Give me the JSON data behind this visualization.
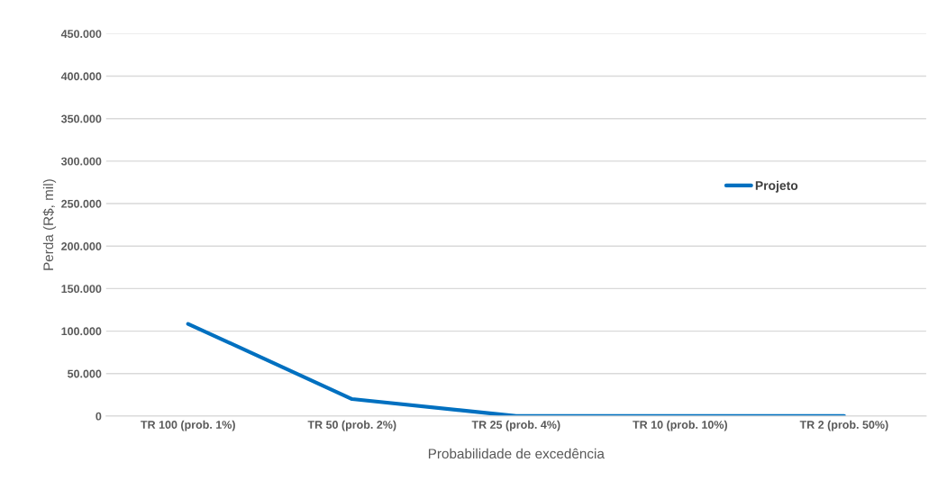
{
  "chart_data": {
    "type": "line",
    "xlabel": "Probabilidade de excedência",
    "ylabel": "Perda (R$, mil)",
    "categories": [
      "TR 100 (prob. 1%)",
      "TR 50 (prob. 2%)",
      "TR 25 (prob. 4%)",
      "TR 10 (prob. 10%)",
      "TR 2 (prob. 50%)"
    ],
    "series": [
      {
        "name": "Projeto",
        "color": "#0070c0",
        "values": [
          108500,
          20000,
          0,
          0,
          0
        ]
      }
    ],
    "ylim": [
      0,
      450000
    ],
    "yticks": [
      {
        "value": 0,
        "label": "0"
      },
      {
        "value": 50000,
        "label": "50.000"
      },
      {
        "value": 100000,
        "label": "100.000"
      },
      {
        "value": 150000,
        "label": "150.000"
      },
      {
        "value": 200000,
        "label": "200.000"
      },
      {
        "value": 250000,
        "label": "250.000"
      },
      {
        "value": 300000,
        "label": "300.000"
      },
      {
        "value": 350000,
        "label": "350.000"
      },
      {
        "value": 400000,
        "label": "400.000"
      },
      {
        "value": 450000,
        "label": "450.000"
      }
    ],
    "grid": "y",
    "legend": "right",
    "marker": "none",
    "line_style": "solid"
  }
}
